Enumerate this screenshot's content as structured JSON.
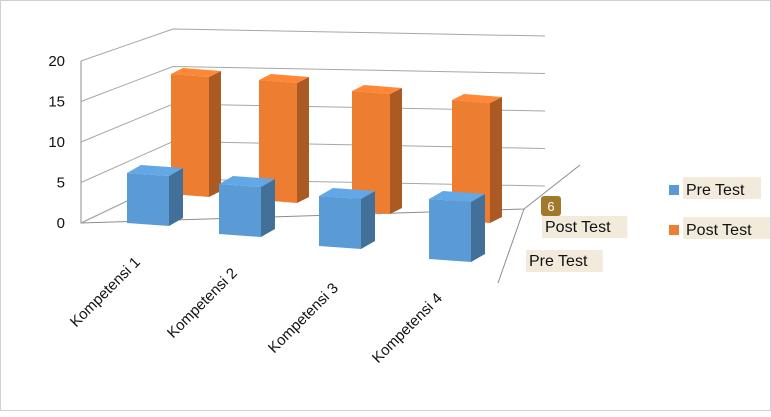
{
  "chart_data": {
    "type": "bar",
    "categories": [
      "Kompetensi 1",
      "Kompetensi 2",
      "Kompetensi 3",
      "Kompetensi 4"
    ],
    "series": [
      {
        "name": "Pre Test",
        "values": [
          5,
          5,
          5,
          6
        ],
        "color": "#5b9bd5"
      },
      {
        "name": "Post Test",
        "values": [
          15,
          15,
          15,
          15
        ],
        "color": "#ed7d31"
      }
    ],
    "y_ticks": [
      "0",
      "5",
      "10",
      "15",
      "20"
    ],
    "ylim": [
      0,
      20
    ],
    "depth_labels": [
      "Post Test",
      "Pre Test"
    ],
    "data_label": "6",
    "grid": true,
    "legend_position": "right",
    "title": "",
    "xlabel": "",
    "ylabel": ""
  }
}
